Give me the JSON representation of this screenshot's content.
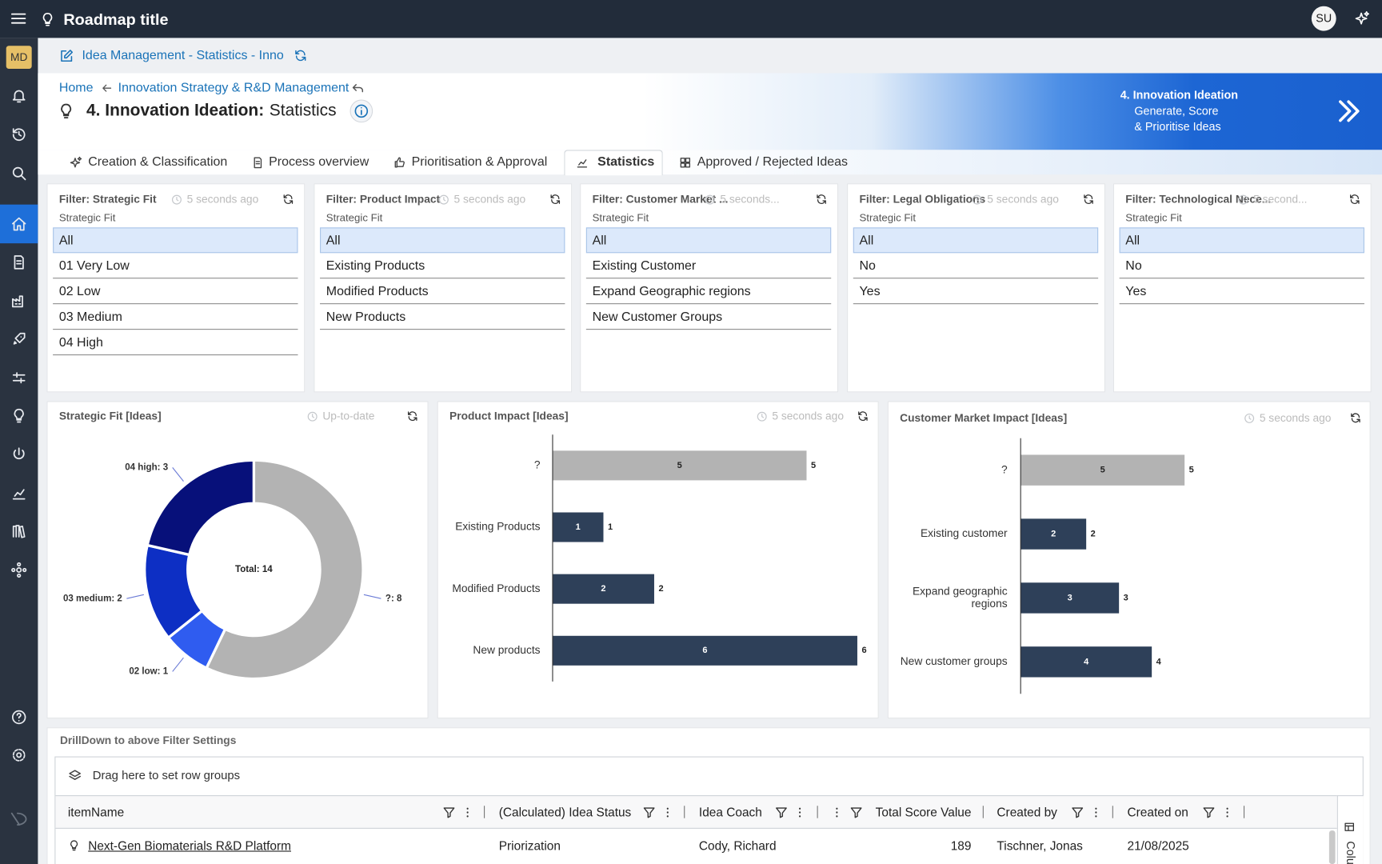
{
  "app": {
    "title": "Roadmap title",
    "user": "SU",
    "badge": "MD"
  },
  "header": {
    "page_link": "Idea Management - Statistics - Inno",
    "breadcrumbs": [
      "Home",
      "Innovation Strategy & R&D Management"
    ],
    "title_bold": "4. Innovation Ideation:",
    "title_rest": "Statistics",
    "banner": {
      "title": "4. Innovation Ideation",
      "lines": [
        "Generate, Score",
        "& Prioritise Ideas"
      ]
    }
  },
  "tabs": [
    "Creation & Classification",
    "Process overview",
    "Prioritisation & Approval",
    "Statistics",
    "Approved / Rejected Ideas"
  ],
  "active_tab": 3,
  "filters": [
    {
      "title": "Filter: Strategic Fit",
      "time": "5 seconds ago",
      "label": "Strategic Fit",
      "selected": 0,
      "options": [
        "All",
        "01 Very Low",
        "02 Low",
        "03 Medium",
        "04 High"
      ]
    },
    {
      "title": "Filter: Product Impact",
      "time": "5 seconds ago",
      "label": "Strategic Fit",
      "selected": 0,
      "options": [
        "All",
        "Existing Products",
        "Modified Products",
        "New Products"
      ]
    },
    {
      "title": "Filter: Customer Market ...",
      "time": "5 seconds...",
      "label": "Strategic Fit",
      "selected": 0,
      "options": [
        "All",
        "Existing Customer",
        "Expand Geographic regions",
        "New Customer Groups"
      ]
    },
    {
      "title": "Filter: Legal Obligations",
      "time": "5 seconds ago",
      "label": "Strategic Fit",
      "selected": 0,
      "options": [
        "All",
        "No",
        "Yes"
      ]
    },
    {
      "title": "Filter: Technological Nece...",
      "time": "5 second...",
      "label": "Strategic Fit",
      "selected": 0,
      "options": [
        "All",
        "No",
        "Yes"
      ]
    }
  ],
  "chart_data": [
    {
      "type": "pie",
      "title": "Strategic Fit [Ideas]",
      "status": "Up-to-date",
      "center_label": "Total: 14",
      "categories": [
        "?",
        "02 low",
        "03 medium",
        "04 high"
      ],
      "values": [
        8,
        1,
        2,
        3
      ],
      "value_labels": [
        "?: 8",
        "02 low: 1",
        "03 medium: 2",
        "04 high: 3"
      ],
      "colors": [
        "#b3b3b3",
        "#2f5cf0",
        "#0d2fc4",
        "#07107a"
      ]
    },
    {
      "type": "bar",
      "orientation": "horizontal",
      "title": "Product Impact [Ideas]",
      "status": "5 seconds ago",
      "categories": [
        "?",
        "Existing Products",
        "Modified Products",
        "New products"
      ],
      "values": [
        5,
        1,
        2,
        6
      ],
      "colors": [
        "#b3b3b3",
        "#2e4059",
        "#2e4059",
        "#2e4059"
      ],
      "xlim": [
        0,
        6.3
      ]
    },
    {
      "type": "bar",
      "orientation": "horizontal",
      "title": "Customer Market Impact [Ideas]",
      "status": "5 seconds ago",
      "categories": [
        "?",
        "Existing customer",
        "Expand geographic regions",
        "New customer groups"
      ],
      "values": [
        5,
        2,
        3,
        4
      ],
      "colors": [
        "#b3b3b3",
        "#2e4059",
        "#2e4059",
        "#2e4059"
      ],
      "xlim": [
        0,
        10
      ]
    }
  ],
  "table": {
    "title": "DrillDown to above Filter Settings",
    "group_hint": "Drag here to set row groups",
    "side_panel": "Columns",
    "columns": [
      "itemName",
      "(Calculated) Idea Status",
      "Idea Coach",
      "Total Score Value",
      "Created by",
      "Created on"
    ],
    "rows": [
      [
        "Next-Gen Biomaterials R&D Platform",
        "Priorization",
        "Cody, Richard",
        189,
        "Tischner, Jonas",
        "21/08/2025"
      ]
    ]
  }
}
